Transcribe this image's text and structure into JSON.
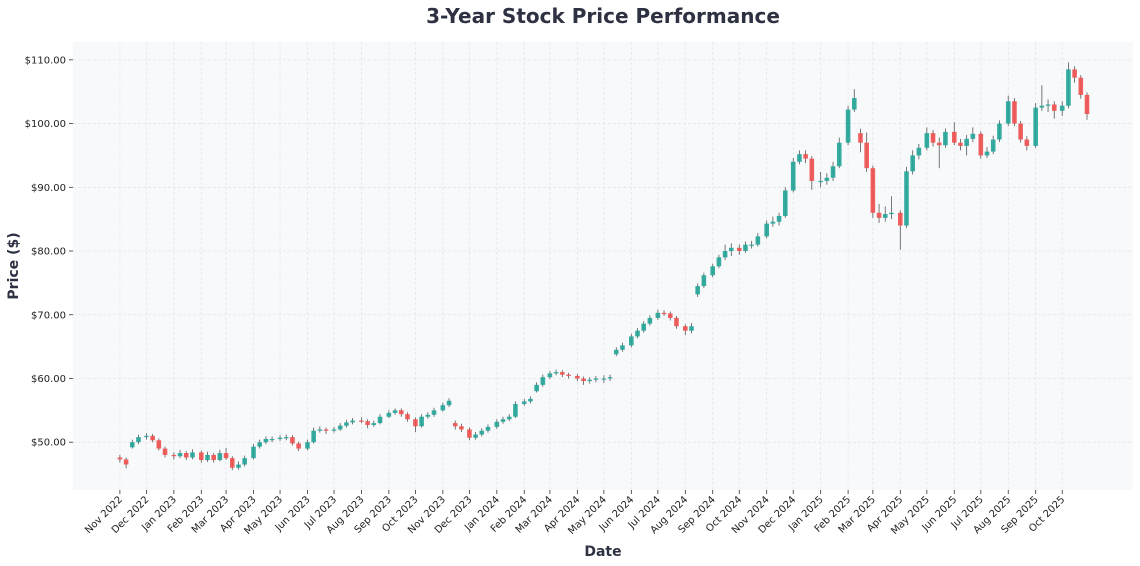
{
  "chart_data": {
    "type": "candlestick",
    "title": "3-Year Stock Price Performance",
    "xlabel": "Date",
    "ylabel": "Price ($)",
    "ylim": [
      42.5,
      112.8
    ],
    "xlim": [
      "2022-09-09",
      "2025-12-20"
    ],
    "grid": true,
    "colors": {
      "up": "#26a69a",
      "down": "#ef5350",
      "background": "#f8f9fb",
      "wick": "#555555",
      "text": "#2d3142"
    },
    "yticks": [
      50,
      60,
      70,
      80,
      90,
      100,
      110
    ],
    "ytick_labels": [
      "$50.00",
      "$60.00",
      "$70.00",
      "$80.00",
      "$90.00",
      "$100.00",
      "$110.00"
    ],
    "xticks": [
      "2022-11-01",
      "2022-12-01",
      "2023-01-01",
      "2023-02-01",
      "2023-03-01",
      "2023-04-01",
      "2023-05-01",
      "2023-06-01",
      "2023-07-01",
      "2023-08-01",
      "2023-09-01",
      "2023-10-01",
      "2023-11-01",
      "2023-12-01",
      "2024-01-01",
      "2024-02-01",
      "2024-03-01",
      "2024-04-01",
      "2024-05-01",
      "2024-06-01",
      "2024-07-01",
      "2024-08-01",
      "2024-09-01",
      "2024-10-01",
      "2024-11-01",
      "2024-12-01",
      "2025-01-01",
      "2025-02-01",
      "2025-03-01",
      "2025-04-01",
      "2025-05-01",
      "2025-06-01",
      "2025-07-01",
      "2025-08-01",
      "2025-09-01",
      "2025-10-01"
    ],
    "xtick_labels": [
      "Nov 2022",
      "Dec 2022",
      "Jan 2023",
      "Feb 2023",
      "Mar 2023",
      "Apr 2023",
      "May 2023",
      "Jun 2023",
      "Jul 2023",
      "Aug 2023",
      "Sep 2023",
      "Oct 2023",
      "Nov 2023",
      "Dec 2023",
      "Jan 2024",
      "Feb 2024",
      "Mar 2024",
      "Apr 2024",
      "May 2024",
      "Jun 2024",
      "Jul 2024",
      "Aug 2024",
      "Sep 2024",
      "Oct 2024",
      "Nov 2024",
      "Dec 2024",
      "Jan 2025",
      "Feb 2025",
      "Mar 2025",
      "Apr 2025",
      "May 2025",
      "Jun 2025",
      "Jul 2025",
      "Aug 2025",
      "Sep 2025",
      "Oct 2025"
    ],
    "columns": [
      "date",
      "open",
      "high",
      "low",
      "close"
    ],
    "ohlc": [
      [
        "2022-11-01",
        47.6,
        48.0,
        46.8,
        47.3
      ],
      [
        "2022-11-08",
        47.3,
        47.6,
        45.9,
        46.5
      ],
      [
        "2022-11-15",
        49.2,
        50.4,
        49.0,
        50.0
      ],
      [
        "2022-11-22",
        50.0,
        51.2,
        49.7,
        50.8
      ],
      [
        "2022-12-01",
        50.8,
        51.4,
        50.4,
        51.0
      ],
      [
        "2022-12-08",
        51.0,
        51.3,
        50.0,
        50.3
      ],
      [
        "2022-12-15",
        50.3,
        50.6,
        48.7,
        49.0
      ],
      [
        "2022-12-22",
        49.0,
        49.3,
        47.6,
        48.0
      ],
      [
        "2023-01-01",
        48.0,
        48.4,
        47.3,
        47.8
      ],
      [
        "2023-01-08",
        47.8,
        48.8,
        47.5,
        48.3
      ],
      [
        "2023-01-15",
        48.3,
        48.6,
        47.2,
        47.6
      ],
      [
        "2023-01-22",
        47.6,
        48.9,
        47.3,
        48.4
      ],
      [
        "2023-02-01",
        48.4,
        48.7,
        46.8,
        47.2
      ],
      [
        "2023-02-08",
        47.2,
        48.5,
        46.9,
        48.0
      ],
      [
        "2023-02-15",
        48.0,
        48.3,
        46.8,
        47.2
      ],
      [
        "2023-02-22",
        47.2,
        48.8,
        47.0,
        48.3
      ],
      [
        "2023-03-01",
        48.3,
        49.1,
        47.2,
        47.5
      ],
      [
        "2023-03-08",
        47.5,
        47.8,
        45.6,
        46.0
      ],
      [
        "2023-03-15",
        46.0,
        47.0,
        45.7,
        46.5
      ],
      [
        "2023-03-22",
        46.5,
        47.9,
        46.2,
        47.5
      ],
      [
        "2023-04-01",
        47.5,
        49.7,
        47.3,
        49.3
      ],
      [
        "2023-04-08",
        49.3,
        50.4,
        49.0,
        50.0
      ],
      [
        "2023-04-15",
        50.0,
        50.9,
        49.7,
        50.5
      ],
      [
        "2023-04-22",
        50.5,
        50.9,
        50.0,
        50.5
      ],
      [
        "2023-05-01",
        50.5,
        51.1,
        50.2,
        50.7
      ],
      [
        "2023-05-08",
        50.7,
        51.2,
        50.3,
        50.8
      ],
      [
        "2023-05-15",
        50.8,
        51.1,
        49.5,
        49.8
      ],
      [
        "2023-05-22",
        49.8,
        50.1,
        48.6,
        49.0
      ],
      [
        "2023-06-01",
        49.0,
        50.4,
        48.7,
        50.0
      ],
      [
        "2023-06-08",
        50.0,
        52.3,
        49.8,
        51.8
      ],
      [
        "2023-06-15",
        51.8,
        52.5,
        51.5,
        52.0
      ],
      [
        "2023-06-22",
        52.0,
        52.3,
        51.3,
        51.8
      ],
      [
        "2023-07-01",
        51.8,
        52.4,
        51.5,
        52.0
      ],
      [
        "2023-07-08",
        52.0,
        53.0,
        51.8,
        52.6
      ],
      [
        "2023-07-15",
        52.6,
        53.5,
        52.3,
        53.1
      ],
      [
        "2023-07-22",
        53.1,
        53.8,
        52.8,
        53.4
      ],
      [
        "2023-08-01",
        53.4,
        53.9,
        53.0,
        53.3
      ],
      [
        "2023-08-08",
        53.3,
        53.6,
        52.2,
        52.7
      ],
      [
        "2023-08-15",
        52.7,
        53.4,
        52.4,
        53.0
      ],
      [
        "2023-08-22",
        53.0,
        54.4,
        52.8,
        54.0
      ],
      [
        "2023-09-01",
        54.0,
        55.0,
        53.8,
        54.6
      ],
      [
        "2023-09-08",
        54.6,
        55.3,
        54.3,
        55.0
      ],
      [
        "2023-09-15",
        55.0,
        55.3,
        54.0,
        54.4
      ],
      [
        "2023-09-22",
        54.4,
        54.7,
        53.2,
        53.6
      ],
      [
        "2023-10-01",
        53.6,
        53.9,
        51.6,
        52.5
      ],
      [
        "2023-10-08",
        52.5,
        54.4,
        52.3,
        54.0
      ],
      [
        "2023-10-15",
        54.0,
        54.7,
        53.7,
        54.3
      ],
      [
        "2023-10-22",
        54.3,
        55.4,
        54.0,
        55.0
      ],
      [
        "2023-11-01",
        55.0,
        56.2,
        54.8,
        55.8
      ],
      [
        "2023-11-08",
        55.8,
        56.9,
        55.5,
        56.5
      ],
      [
        "2023-11-15",
        53.0,
        53.4,
        52.0,
        52.5
      ],
      [
        "2023-11-22",
        52.5,
        52.9,
        51.6,
        52.0
      ],
      [
        "2023-12-01",
        52.0,
        52.3,
        50.3,
        50.7
      ],
      [
        "2023-12-08",
        50.7,
        51.6,
        50.4,
        51.2
      ],
      [
        "2023-12-15",
        51.2,
        52.2,
        50.9,
        51.8
      ],
      [
        "2023-12-22",
        51.8,
        52.8,
        51.5,
        52.4
      ],
      [
        "2024-01-01",
        52.4,
        53.6,
        52.1,
        53.2
      ],
      [
        "2024-01-08",
        53.2,
        54.0,
        52.9,
        53.6
      ],
      [
        "2024-01-15",
        53.6,
        54.4,
        53.3,
        54.0
      ],
      [
        "2024-01-22",
        54.0,
        56.4,
        53.8,
        56.0
      ],
      [
        "2024-02-01",
        56.0,
        56.8,
        55.7,
        56.4
      ],
      [
        "2024-02-08",
        56.4,
        57.2,
        56.1,
        56.8
      ],
      [
        "2024-02-15",
        58.0,
        59.4,
        57.8,
        59.0
      ],
      [
        "2024-02-22",
        59.0,
        60.6,
        58.7,
        60.2
      ],
      [
        "2024-03-01",
        60.2,
        61.2,
        59.9,
        60.8
      ],
      [
        "2024-03-08",
        60.8,
        61.4,
        60.5,
        61.0
      ],
      [
        "2024-03-15",
        61.0,
        61.3,
        60.2,
        60.6
      ],
      [
        "2024-03-22",
        60.6,
        60.9,
        60.0,
        60.4
      ],
      [
        "2024-04-01",
        60.4,
        60.7,
        59.6,
        60.0
      ],
      [
        "2024-04-08",
        60.0,
        60.3,
        59.0,
        59.6
      ],
      [
        "2024-04-15",
        59.6,
        60.2,
        59.2,
        59.8
      ],
      [
        "2024-04-22",
        59.8,
        60.4,
        59.4,
        60.0
      ],
      [
        "2024-05-01",
        60.0,
        60.5,
        59.3,
        60.0
      ],
      [
        "2024-05-08",
        60.0,
        60.6,
        59.6,
        60.2
      ],
      [
        "2024-05-15",
        63.8,
        64.9,
        63.5,
        64.5
      ],
      [
        "2024-05-22",
        64.5,
        65.6,
        64.2,
        65.2
      ],
      [
        "2024-06-01",
        65.2,
        67.0,
        64.9,
        66.6
      ],
      [
        "2024-06-08",
        66.6,
        67.9,
        66.3,
        67.5
      ],
      [
        "2024-06-15",
        67.5,
        69.0,
        67.2,
        68.6
      ],
      [
        "2024-06-22",
        68.6,
        69.9,
        68.3,
        69.5
      ],
      [
        "2024-07-01",
        69.5,
        70.8,
        69.2,
        70.3
      ],
      [
        "2024-07-08",
        70.3,
        70.7,
        69.8,
        70.2
      ],
      [
        "2024-07-15",
        70.2,
        70.5,
        69.1,
        69.5
      ],
      [
        "2024-07-22",
        69.5,
        69.8,
        67.8,
        68.2
      ],
      [
        "2024-08-01",
        68.2,
        68.5,
        66.8,
        67.5
      ],
      [
        "2024-08-08",
        67.5,
        68.7,
        67.1,
        68.2
      ],
      [
        "2024-08-15",
        73.2,
        74.9,
        72.8,
        74.5
      ],
      [
        "2024-08-22",
        74.5,
        76.6,
        74.2,
        76.2
      ],
      [
        "2024-09-01",
        76.2,
        78.0,
        75.9,
        77.6
      ],
      [
        "2024-09-08",
        77.6,
        79.4,
        77.3,
        79.0
      ],
      [
        "2024-09-15",
        79.0,
        81.0,
        78.6,
        80.0
      ],
      [
        "2024-09-22",
        80.0,
        81.2,
        79.2,
        80.5
      ],
      [
        "2024-10-01",
        80.5,
        81.0,
        79.4,
        80.0
      ],
      [
        "2024-10-08",
        80.0,
        81.5,
        79.7,
        81.0
      ],
      [
        "2024-10-15",
        81.0,
        81.6,
        80.4,
        81.0
      ],
      [
        "2024-10-22",
        81.0,
        82.8,
        80.7,
        82.3
      ],
      [
        "2024-11-01",
        82.3,
        84.8,
        82.0,
        84.3
      ],
      [
        "2024-11-08",
        84.3,
        85.4,
        83.8,
        84.6
      ],
      [
        "2024-11-15",
        84.6,
        86.0,
        84.0,
        85.5
      ],
      [
        "2024-11-22",
        85.5,
        90.0,
        85.2,
        89.5
      ],
      [
        "2024-12-01",
        89.5,
        94.6,
        89.2,
        94.0
      ],
      [
        "2024-12-08",
        94.0,
        95.8,
        93.6,
        95.2
      ],
      [
        "2024-12-15",
        95.2,
        95.8,
        93.8,
        94.5
      ],
      [
        "2024-12-22",
        94.5,
        94.9,
        89.6,
        91.0
      ],
      [
        "2025-01-01",
        91.0,
        92.4,
        90.0,
        91.0
      ],
      [
        "2025-01-08",
        91.0,
        92.2,
        90.4,
        91.5
      ],
      [
        "2025-01-15",
        91.5,
        94.0,
        91.0,
        93.3
      ],
      [
        "2025-01-22",
        93.3,
        97.8,
        93.0,
        97.0
      ],
      [
        "2025-02-01",
        97.0,
        102.8,
        96.6,
        102.2
      ],
      [
        "2025-02-08",
        102.2,
        105.4,
        101.8,
        104.0
      ],
      [
        "2025-02-15",
        98.5,
        99.2,
        95.5,
        97.0
      ],
      [
        "2025-02-22",
        97.0,
        98.6,
        92.4,
        93.0
      ],
      [
        "2025-03-01",
        93.0,
        93.4,
        85.2,
        86.0
      ],
      [
        "2025-03-08",
        86.0,
        87.4,
        84.4,
        85.2
      ],
      [
        "2025-03-15",
        85.2,
        87.0,
        84.6,
        85.8
      ],
      [
        "2025-03-22",
        85.8,
        88.6,
        85.0,
        86.0
      ],
      [
        "2025-04-01",
        86.0,
        86.4,
        80.2,
        84.0
      ],
      [
        "2025-04-08",
        84.0,
        93.2,
        83.6,
        92.5
      ],
      [
        "2025-04-15",
        92.5,
        95.8,
        92.0,
        95.0
      ],
      [
        "2025-04-22",
        95.0,
        96.8,
        94.4,
        96.2
      ],
      [
        "2025-05-01",
        96.2,
        99.4,
        95.8,
        98.5
      ],
      [
        "2025-05-08",
        98.5,
        99.0,
        96.4,
        97.0
      ],
      [
        "2025-05-15",
        97.0,
        97.8,
        93.0,
        96.6
      ],
      [
        "2025-05-22",
        96.6,
        99.2,
        96.2,
        98.7
      ],
      [
        "2025-06-01",
        98.7,
        100.2,
        96.6,
        97.0
      ],
      [
        "2025-06-08",
        97.0,
        97.6,
        95.8,
        96.5
      ],
      [
        "2025-06-15",
        96.5,
        98.2,
        95.0,
        97.6
      ],
      [
        "2025-06-22",
        97.6,
        99.4,
        97.1,
        98.4
      ],
      [
        "2025-07-01",
        98.4,
        98.8,
        94.5,
        95.0
      ],
      [
        "2025-07-08",
        95.0,
        96.3,
        94.6,
        95.6
      ],
      [
        "2025-07-15",
        95.6,
        98.1,
        95.2,
        97.5
      ],
      [
        "2025-07-22",
        97.5,
        100.5,
        97.1,
        100.0
      ],
      [
        "2025-08-01",
        100.0,
        104.4,
        99.6,
        103.5
      ],
      [
        "2025-08-08",
        103.5,
        104.0,
        99.6,
        100.0
      ],
      [
        "2025-08-15",
        100.0,
        100.4,
        97.0,
        97.5
      ],
      [
        "2025-08-22",
        97.5,
        98.0,
        95.8,
        96.5
      ],
      [
        "2025-09-01",
        96.5,
        103.2,
        96.2,
        102.5
      ],
      [
        "2025-09-08",
        102.5,
        106.0,
        102.0,
        102.8
      ],
      [
        "2025-09-15",
        102.8,
        103.8,
        101.8,
        103.0
      ],
      [
        "2025-09-22",
        103.0,
        103.5,
        100.8,
        102.0
      ],
      [
        "2025-10-01",
        102.0,
        103.5,
        101.2,
        102.8
      ],
      [
        "2025-10-08",
        102.8,
        109.6,
        102.4,
        108.5
      ],
      [
        "2025-10-15",
        108.5,
        109.0,
        106.4,
        107.2
      ],
      [
        "2025-10-22",
        107.2,
        107.6,
        103.9,
        104.5
      ],
      [
        "2025-10-29",
        104.5,
        104.9,
        100.6,
        101.5
      ]
    ]
  }
}
